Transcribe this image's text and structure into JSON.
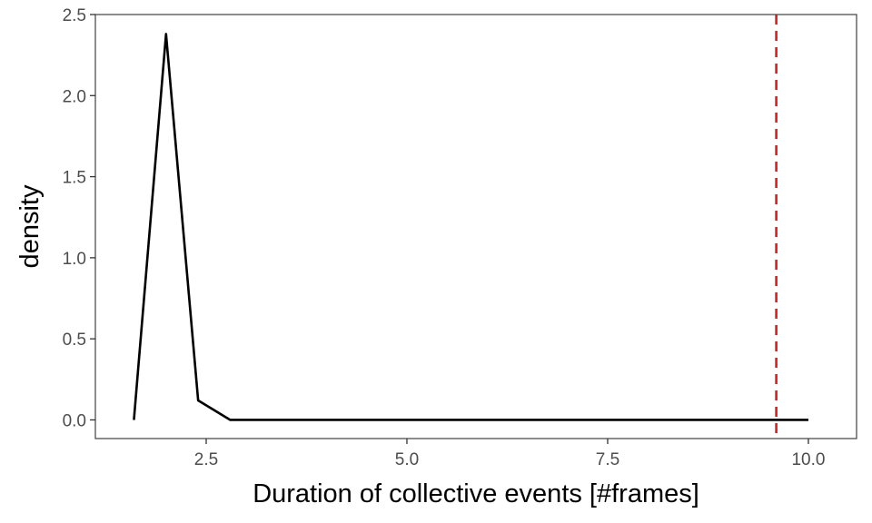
{
  "chart_data": {
    "type": "line",
    "title": "",
    "xlabel": "Duration of collective events [#frames]",
    "ylabel": "density",
    "xlim": [
      1.12,
      10.6
    ],
    "ylim": [
      -0.115,
      2.5
    ],
    "x_ticks": [
      2.5,
      5.0,
      7.5,
      10.0
    ],
    "x_tick_labels": [
      "2.5",
      "5.0",
      "7.5",
      "10.0"
    ],
    "y_ticks": [
      0.0,
      0.5,
      1.0,
      1.5,
      2.0,
      2.5
    ],
    "y_tick_labels": [
      "0.0",
      "0.5",
      "1.0",
      "1.5",
      "2.0",
      "2.5"
    ],
    "grid": false,
    "legend": "none",
    "series": [
      {
        "color": "#000000",
        "x": [
          1.6,
          2.0,
          2.4,
          2.8,
          3.2,
          4.0,
          5.0,
          6.0,
          7.0,
          8.0,
          9.0,
          10.0
        ],
        "y": [
          0.0,
          2.38,
          0.12,
          0.0,
          0.0,
          0.0,
          0.0,
          0.0,
          0.0,
          0.0,
          0.0,
          0.0
        ]
      }
    ],
    "reference_lines": [
      {
        "orientation": "vertical",
        "x": 9.6,
        "color": "#dd1c1c",
        "style": "dashed"
      }
    ],
    "panel_border_color": "#4d4d4d"
  }
}
